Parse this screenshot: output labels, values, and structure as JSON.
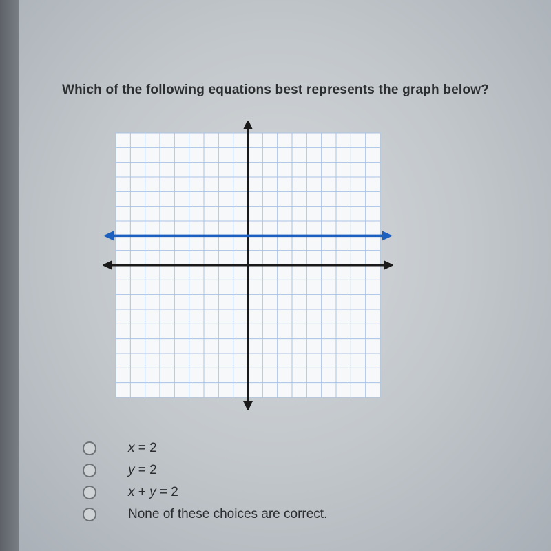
{
  "question_text": "Which of the following equations best represents the graph below?",
  "graph": {
    "type": "coordinate-plane",
    "xlim": [
      -9,
      9
    ],
    "ylim": [
      -9,
      9
    ],
    "grid_step": 1,
    "grid_color": "#a9c4e6",
    "axis_color": "#1a1a1a",
    "axis_width": 3,
    "background_color": "#f6f8fa",
    "line": {
      "orientation": "horizontal",
      "y_value": 2,
      "x_from": -9,
      "x_to": 9,
      "color": "#1b5fbf",
      "width": 3.5,
      "arrowheads": true
    },
    "aspect_ratio": 1
  },
  "choices": [
    {
      "label_html": "<span class='var'>x</span> = 2"
    },
    {
      "label_html": "<span class='var'>y</span> = 2"
    },
    {
      "label_html": "<span class='var'>x</span> + <span class='var'>y</span> = 2"
    },
    {
      "label_html": "None of these choices are correct."
    }
  ],
  "choice_radio_border": "#6e7378",
  "text_color": "#2b2d2f"
}
